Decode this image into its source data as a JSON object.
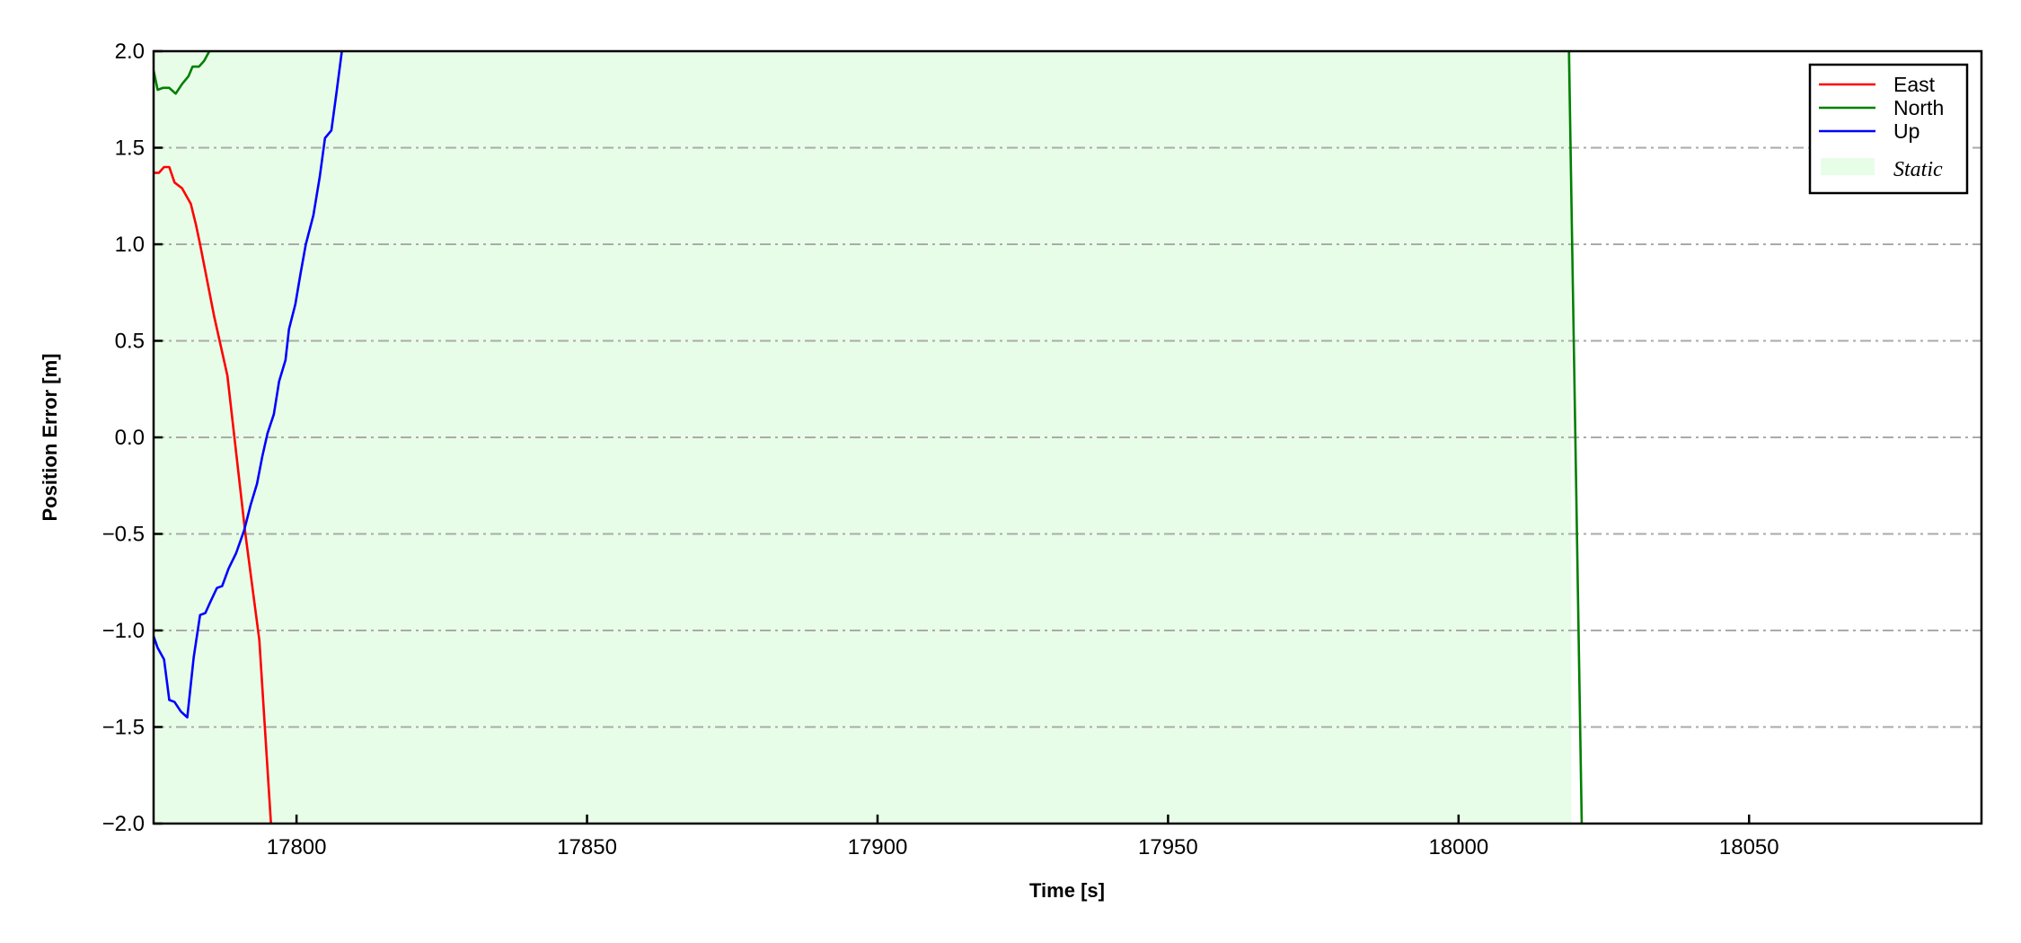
{
  "chart_data": {
    "type": "line",
    "title": "",
    "xlabel": "Time [s]",
    "ylabel": "Position Error [m]",
    "xlim": [
      17775.4,
      18090
    ],
    "ylim": [
      -2.0,
      2.0
    ],
    "xticks": [
      17800,
      17850,
      17900,
      17950,
      18000,
      18050
    ],
    "xtick_labels": [
      "17800",
      "17850",
      "17900",
      "17950",
      "18000",
      "18050"
    ],
    "yticks": [
      -2.0,
      -1.5,
      -1.0,
      -0.5,
      0.0,
      0.5,
      1.0,
      1.5,
      2.0
    ],
    "ytick_labels": [
      "−2.0",
      "−1.5",
      "−1.0",
      "−0.5",
      "0.0",
      "0.5",
      "1.0",
      "1.5",
      "2.0"
    ],
    "grid": {
      "axis": "y",
      "style": "dash-dot",
      "color": "#aaaaaa"
    },
    "legend": {
      "placement": "top-right",
      "entries": [
        "East",
        "North",
        "Up",
        "Static"
      ]
    },
    "shaded_regions": [
      {
        "name": "Static",
        "x": [
          17775.4,
          18019.4
        ],
        "color": "#e8fde8"
      }
    ],
    "series": [
      {
        "name": "East",
        "color": "#ff0000",
        "segments": [
          [
            [
              17775.4,
              1.37
            ],
            [
              17776.3,
              1.37
            ],
            [
              17777.2,
              1.4
            ],
            [
              17778.1,
              1.4
            ],
            [
              17779.0,
              1.32
            ],
            [
              17780.3,
              1.29
            ],
            [
              17781.8,
              1.21
            ],
            [
              17782.7,
              1.1
            ],
            [
              17783.4,
              1.0
            ],
            [
              17785.8,
              0.63
            ],
            [
              17788.1,
              0.32
            ],
            [
              17791.2,
              -0.5
            ],
            [
              17793.6,
              -1.05
            ],
            [
              17795.6,
              -2.0
            ]
          ]
        ]
      },
      {
        "name": "North",
        "color": "#008000",
        "segments": [
          [
            [
              17775.4,
              1.9
            ],
            [
              17776.1,
              1.8
            ],
            [
              17777.0,
              1.81
            ],
            [
              17778.1,
              1.81
            ],
            [
              17779.2,
              1.78
            ],
            [
              17780.3,
              1.83
            ],
            [
              17781.4,
              1.87
            ],
            [
              17782.1,
              1.92
            ],
            [
              17783.2,
              1.92
            ],
            [
              17784.1,
              1.95
            ],
            [
              17785.0,
              2.0
            ]
          ],
          [
            [
              18019.0,
              2.0
            ],
            [
              18021.2,
              -2.0
            ]
          ]
        ]
      },
      {
        "name": "Up",
        "color": "#0000ff",
        "segments": [
          [
            [
              17775.4,
              -1.03
            ],
            [
              17776.1,
              -1.09
            ],
            [
              17777.2,
              -1.15
            ],
            [
              17778.1,
              -1.36
            ],
            [
              17779.0,
              -1.37
            ],
            [
              17780.1,
              -1.42
            ],
            [
              17781.2,
              -1.45
            ],
            [
              17782.3,
              -1.14
            ],
            [
              17783.4,
              -0.92
            ],
            [
              17784.3,
              -0.91
            ],
            [
              17785.2,
              -0.85
            ],
            [
              17786.3,
              -0.78
            ],
            [
              17787.2,
              -0.77
            ],
            [
              17788.3,
              -0.68
            ],
            [
              17789.6,
              -0.6
            ],
            [
              17791.0,
              -0.48
            ],
            [
              17792.1,
              -0.35
            ],
            [
              17793.2,
              -0.24
            ],
            [
              17794.1,
              -0.1
            ],
            [
              17795.0,
              0.02
            ],
            [
              17796.1,
              0.12
            ],
            [
              17797.0,
              0.29
            ],
            [
              17798.1,
              0.4
            ],
            [
              17798.7,
              0.56
            ],
            [
              17799.8,
              0.69
            ],
            [
              17800.7,
              0.85
            ],
            [
              17801.6,
              1.0
            ],
            [
              17802.9,
              1.15
            ],
            [
              17804.0,
              1.35
            ],
            [
              17804.9,
              1.55
            ],
            [
              17806.0,
              1.59
            ],
            [
              17806.9,
              1.79
            ],
            [
              17807.8,
              2.0
            ]
          ]
        ]
      }
    ]
  }
}
